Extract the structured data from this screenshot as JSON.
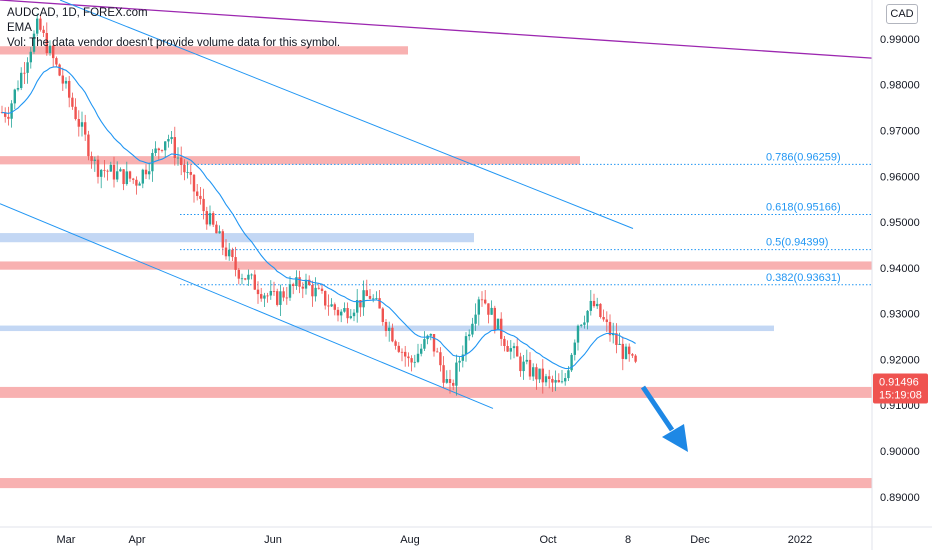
{
  "header": {
    "title": "AUDCAD, 1D, FOREX.com",
    "indicator": "EMA",
    "volume_note": "Vol: The data vendor doesn't provide volume data for this symbol."
  },
  "currency": "CAD",
  "price_tag": {
    "price": "0.91496",
    "countdown": "15:19:08"
  },
  "colors": {
    "resistance_zone": "#f7a3a3",
    "support_zone": "#b9d0f2",
    "up_candle": "#26a69a",
    "down_candle": "#ef5350",
    "ema_line": "#2196f3",
    "trendline": "#2196f3",
    "long_trendline": "#9c27b0",
    "arrow": "#1e88e5"
  },
  "chart_data": {
    "type": "candlestick",
    "symbol": "AUDCAD",
    "timeframe": "1D",
    "y_ticks": [
      "0.99000",
      "0.98000",
      "0.97000",
      "0.96000",
      "0.95000",
      "0.94000",
      "0.93000",
      "0.92000",
      "0.91000",
      "0.90000",
      "0.89000"
    ],
    "x_ticks": [
      "Mar",
      "Apr",
      "Jun",
      "Aug",
      "Oct",
      "8",
      "Dec",
      "2022"
    ],
    "ylim": [
      0.8845,
      0.9985
    ],
    "fib_levels": [
      {
        "label": "0.786(0.96259)",
        "value": 0.96259
      },
      {
        "label": "0.618(0.95166)",
        "value": 0.95166
      },
      {
        "label": "0.5(0.94399)",
        "value": 0.94399
      },
      {
        "label": "0.382(0.93631)",
        "value": 0.93631
      }
    ],
    "zones": [
      {
        "kind": "resistance",
        "low": 0.9866,
        "high": 0.9884,
        "end": "Aug"
      },
      {
        "kind": "resistance",
        "low": 0.9626,
        "high": 0.9644,
        "end": "Oct"
      },
      {
        "kind": "support",
        "low": 0.9456,
        "high": 0.9476,
        "end": "Aug"
      },
      {
        "kind": "resistance",
        "low": 0.9396,
        "high": 0.9414,
        "end": "right"
      },
      {
        "kind": "support",
        "low": 0.9262,
        "high": 0.9274,
        "end": "Nov"
      },
      {
        "kind": "resistance",
        "low": 0.9116,
        "high": 0.914,
        "end": "right"
      },
      {
        "kind": "resistance",
        "low": 0.8919,
        "high": 0.8941,
        "end": "right"
      }
    ],
    "swing_closes": [
      {
        "date": "Jan",
        "close": 0.974
      },
      {
        "date": "Feb",
        "close": 0.993
      },
      {
        "date": "Mar",
        "close": 0.979
      },
      {
        "date": "Mar",
        "close": 0.962
      },
      {
        "date": "Apr",
        "close": 0.959
      },
      {
        "date": "Apr",
        "close": 0.969
      },
      {
        "date": "May",
        "close": 0.952
      },
      {
        "date": "May",
        "close": 0.94
      },
      {
        "date": "Jun",
        "close": 0.933
      },
      {
        "date": "Jun",
        "close": 0.937
      },
      {
        "date": "Jul",
        "close": 0.93
      },
      {
        "date": "Jul",
        "close": 0.934
      },
      {
        "date": "Aug",
        "close": 0.919
      },
      {
        "date": "Aug",
        "close": 0.925
      },
      {
        "date": "Aug",
        "close": 0.913
      },
      {
        "date": "Sep",
        "close": 0.935
      },
      {
        "date": "Sep",
        "close": 0.926
      },
      {
        "date": "Sep",
        "close": 0.919
      },
      {
        "date": "Oct",
        "close": 0.915
      },
      {
        "date": "Oct",
        "close": 0.914
      },
      {
        "date": "Oct",
        "close": 0.928
      },
      {
        "date": "Oct",
        "close": 0.932
      },
      {
        "date": "Nov",
        "close": 0.923
      },
      {
        "date": "Nov",
        "close": 0.915
      }
    ]
  }
}
